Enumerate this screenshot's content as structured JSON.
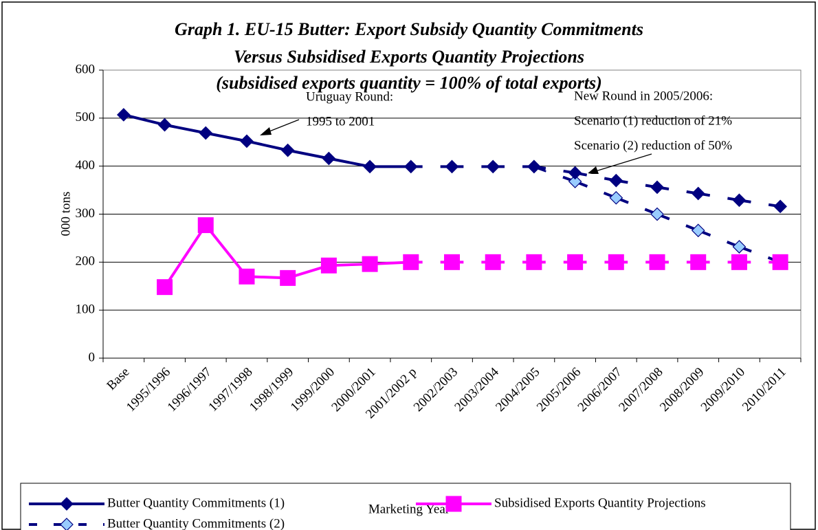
{
  "chart_data": {
    "type": "line",
    "title": [
      "Graph 1. EU-15 Butter: Export Subsidy Quantity Commitments",
      "Versus Subsidised Exports Quantity Projections",
      "(subsidised exports quantity = 100% of total exports)"
    ],
    "xlabel": "Marketing Year",
    "ylabel": "000 tons",
    "categories": [
      "Base",
      "1995/1996",
      "1996/1997",
      "1997/1998",
      "1998/1999",
      "1999/2000",
      "2000/2001",
      "2001/2002 p",
      "2002/2003",
      "2003/2004",
      "2004/2005",
      "2005/2006",
      "2006/2007",
      "2007/2008",
      "2008/2009",
      "2009/2010",
      "2010/2011"
    ],
    "series": [
      {
        "name": "Butter Quantity Commitments (2)",
        "color": "#000080",
        "marker": "diamond",
        "marker_fill": "#99ccff",
        "dashed_from": 0,
        "values": [
          null,
          null,
          null,
          null,
          null,
          null,
          null,
          null,
          null,
          null,
          399,
          368,
          334,
          300,
          266,
          232,
          200
        ]
      },
      {
        "name": "Butter Quantity Commitments (1)",
        "color": "#000080",
        "marker": "diamond",
        "marker_fill": "#000080",
        "dashed_from": 7,
        "values": [
          507,
          486,
          469,
          452,
          433,
          416,
          399,
          399,
          399,
          399,
          399,
          386,
          370,
          356,
          343,
          329,
          316
        ]
      },
      {
        "name": "Subsidised Exports Quantity Projections",
        "color": "#ff00ff",
        "marker": "square",
        "marker_fill": "#ff00ff",
        "dashed_from": 7,
        "values": [
          null,
          148,
          277,
          170,
          167,
          193,
          196,
          200,
          200,
          200,
          200,
          200,
          200,
          200,
          200,
          200,
          200
        ]
      }
    ],
    "annotations": [
      {
        "lines": [
          "Uruguay Round:",
          "1995 to 2001"
        ]
      },
      {
        "lines": [
          "New Round in 2005/2006:",
          "Scenario (1) reduction of 21%",
          "Scenario (2) reduction of 50%"
        ]
      }
    ],
    "ylim": [
      0,
      600
    ],
    "yticks": [
      0,
      100,
      200,
      300,
      400,
      500,
      600
    ],
    "grid": true
  }
}
